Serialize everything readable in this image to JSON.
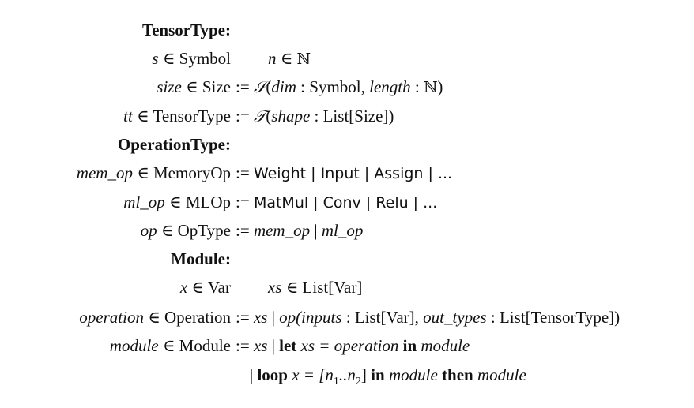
{
  "grammar": {
    "sections": {
      "tensor_type": "TensorType:",
      "operation_type": "OperationType:",
      "module": "Module:"
    },
    "symbols": {
      "elem": "∈",
      "defeq": ":=",
      "bar": "|",
      "nat": "ℕ",
      "S": "𝒮",
      "T": "𝒯"
    },
    "keywords": {
      "let": "let",
      "in": "in",
      "loop": "loop",
      "then": "then"
    },
    "rows": {
      "r2": {
        "lhs_var": "s",
        "lhs_set": "Symbol",
        "rhs_var": "n"
      },
      "r3": {
        "lhs_var": "size",
        "lhs_set": "Size",
        "rhs_field1": "dim",
        "rhs_type1": "Symbol,",
        "rhs_field2": "length"
      },
      "r4": {
        "lhs_var": "tt",
        "lhs_set": "TensorType",
        "rhs_field": "shape",
        "rhs_type": "List[Size])"
      },
      "r6": {
        "lhs_var": "mem_op",
        "lhs_set": "MemoryOp",
        "rhs": "Weight | Input | Assign | ..."
      },
      "r7": {
        "lhs_var": "ml_op",
        "lhs_set": "MLOp",
        "rhs": "MatMul | Conv | Relu | ..."
      },
      "r8": {
        "lhs_var": "op",
        "lhs_set": "OpType",
        "rhs_a": "mem_op",
        "rhs_b": "ml_op"
      },
      "r10": {
        "lhs_var": "x",
        "lhs_set": "Var",
        "rhs_var": "xs",
        "rhs_type": "List[Var]"
      },
      "r11": {
        "lhs_var": "operation",
        "lhs_set": "Operation",
        "rhs_xs": "xs",
        "rhs_op": "op(inputs",
        "rhs_t1": "List[Var],",
        "rhs_f2": "out_types",
        "rhs_t2": "List[TensorType])"
      },
      "r12": {
        "lhs_var": "module",
        "lhs_set": "Module",
        "rhs_xs": "xs",
        "rhs_xs2": "xs =",
        "rhs_operation": "operation",
        "rhs_module": "module"
      },
      "r13": {
        "x": "x =",
        "range_open": "[n",
        "sub1": "1",
        "dots": "..n",
        "sub2": "2",
        "range_close": "]",
        "module1": "module",
        "module2": "module"
      }
    }
  }
}
